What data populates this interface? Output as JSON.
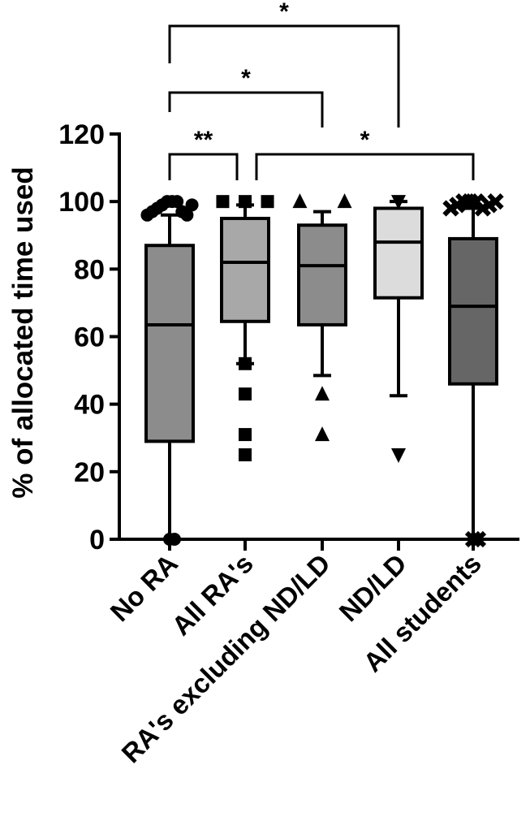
{
  "chart_data": {
    "type": "box",
    "ylabel": "% of allocated time used",
    "ylim": [
      0,
      120
    ],
    "yticks": [
      "0",
      "20",
      "40",
      "60",
      "80",
      "100",
      "120"
    ],
    "categories": [
      "No RA",
      "All RA's",
      "RA's excluding ND/LD",
      "ND/LD",
      "All students"
    ],
    "boxes": [
      {
        "name": "No RA",
        "whisker_low": 0,
        "q1": 29,
        "median": 63.5,
        "q3": 87,
        "whisker_high": 96,
        "outliers": [
          0,
          0,
          96,
          97,
          98,
          99,
          100,
          100,
          100,
          97,
          96,
          99
        ],
        "marker": "circle",
        "fill": "#8c8c8c"
      },
      {
        "name": "All RA's",
        "whisker_low": 52,
        "q1": 64.5,
        "median": 82,
        "q3": 95,
        "whisker_high": 99,
        "outliers": [
          52,
          43,
          31,
          25,
          100,
          100,
          100
        ],
        "marker": "square",
        "fill": "#a8a8a8"
      },
      {
        "name": "RA's excluding ND/LD",
        "whisker_low": 48.5,
        "q1": 63.5,
        "median": 81,
        "q3": 93,
        "whisker_high": 97,
        "outliers": [
          43,
          31,
          100,
          100
        ],
        "marker": "triangle-up",
        "fill": "#8c8c8c"
      },
      {
        "name": "ND/LD",
        "whisker_low": 42.5,
        "q1": 71.5,
        "median": 88,
        "q3": 98,
        "whisker_high": 100,
        "outliers": [
          25,
          100
        ],
        "marker": "triangle-down",
        "fill": "#dcdcdc"
      },
      {
        "name": "All students",
        "whisker_low": 0,
        "q1": 46,
        "median": 69,
        "q3": 89,
        "whisker_high": 98,
        "outliers": [
          0,
          0,
          98,
          99,
          100,
          100,
          100,
          98,
          99,
          100
        ],
        "marker": "cross",
        "fill": "#666666"
      }
    ],
    "significance": [
      {
        "from": 0,
        "to": 3,
        "label": "*"
      },
      {
        "from": 0,
        "to": 2,
        "label": "*"
      },
      {
        "from": 0,
        "to": 1,
        "label": "**"
      },
      {
        "from": 1,
        "to": 4,
        "label": "*"
      }
    ]
  }
}
